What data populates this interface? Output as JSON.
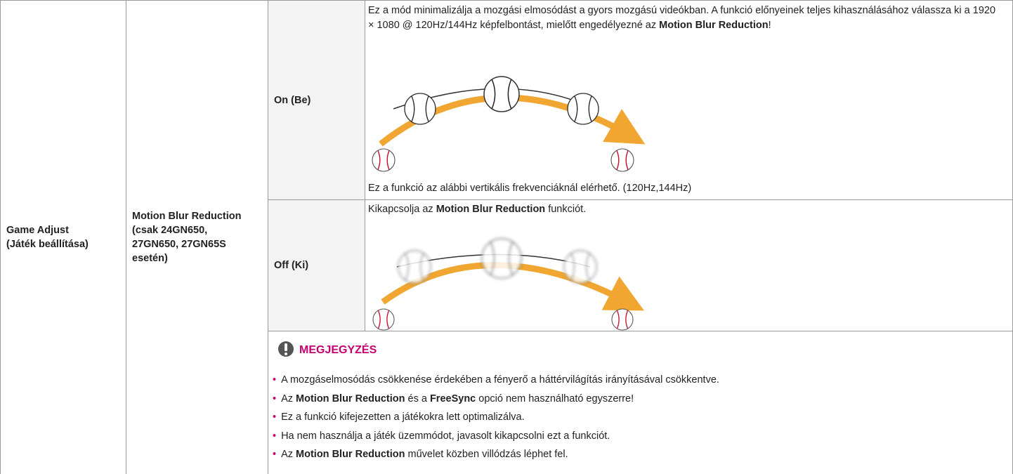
{
  "setting": [
    "Game Adjust",
    "(Játék beállítása)"
  ],
  "option": [
    "Motion Blur Reduction",
    "(csak 24GN650, 27GN650, 27GN65S esetén)"
  ],
  "on": {
    "label": "On (Be)",
    "description": [
      {
        "text": "Ez a mód minimalizálja a mozgási elmosódást a gyors mozgású videókban. A funkció előnyeinek teljes kihasználásához válassza ki a 1920 × 1080 @ 120Hz/144Hz képfelbontást, mielőtt engedélyezné az "
      },
      {
        "text": "Motion Blur Reduction",
        "bold": true
      },
      {
        "text": "!"
      }
    ],
    "footnote": [
      {
        "text": "Ez a funkció az alábbi vertikális frekvenciáknál elérhető. (120Hz,144Hz)"
      }
    ]
  },
  "off": {
    "label": "Off (Ki)",
    "description": [
      {
        "text": "Kikapcsolja az "
      },
      {
        "text": "Motion Blur Reduction",
        "bold": true
      },
      {
        "text": " funkciót."
      }
    ]
  },
  "note": {
    "title": "MEGJEGYZÉS",
    "items": [
      [
        {
          "text": "A mozgáselmosódás csökkenése érdekében a fényerő a háttérvilágítás irányításával csökkentve."
        }
      ],
      [
        {
          "text": "Az "
        },
        {
          "text": "Motion Blur Reduction",
          "bold": true
        },
        {
          "text": " és a "
        },
        {
          "text": "FreeSync",
          "bold": true
        },
        {
          "text": " opció nem használható egyszerre!"
        }
      ],
      [
        {
          "text": "Ez a funkció kifejezetten a játékokra lett optimalizálva."
        }
      ],
      [
        {
          "text": "Ha nem használja a játék üzemmódot, javasolt kikapcsolni ezt a funkciót."
        }
      ],
      [
        {
          "text": "Az "
        },
        {
          "text": "Motion Blur Reduction",
          "bold": true
        },
        {
          "text": " művelet közben villódzás léphet fel."
        }
      ]
    ]
  }
}
